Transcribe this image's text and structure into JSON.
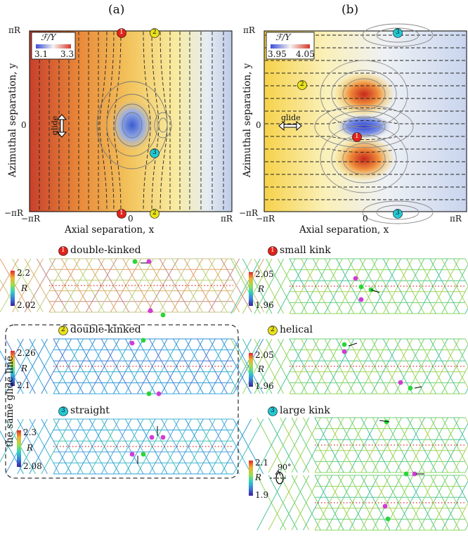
{
  "panels": [
    {
      "label": "(a)",
      "ylabel": "Azimuthal separation, y",
      "xlabel": "Axial separation, x",
      "x_ticks": [
        "−πR",
        "0",
        "πR"
      ],
      "y_ticks": [
        "πR",
        "0",
        "−πR"
      ],
      "legend_title": "ℱ/Y",
      "legend_min": "3.1",
      "legend_max": "3.3",
      "glide": "glide",
      "markers": [
        "1",
        "2",
        "3",
        "1",
        "2"
      ]
    },
    {
      "label": "(b)",
      "ylabel": "Azimuthal separation, y",
      "xlabel": "Axial separation, x",
      "x_ticks": [
        "−πR",
        "0",
        "πR"
      ],
      "y_ticks": [
        "πR",
        "0",
        "−πR"
      ],
      "legend_title": "ℱ/Y",
      "legend_min": "3.95",
      "legend_max": "4.05",
      "glide": "glide",
      "markers": [
        "3",
        "2",
        "1",
        "3"
      ]
    }
  ],
  "configs_a": [
    {
      "num": "1",
      "color": "#e2231a",
      "title": "double-kinked",
      "cb_max": "2.2",
      "cb_min": "2.02",
      "cb_mid": "R"
    },
    {
      "num": "2",
      "color": "#e9e21a",
      "title": "double-kinked",
      "cb_max": "2.26",
      "cb_min": "2.1",
      "cb_mid": "R"
    },
    {
      "num": "3",
      "color": "#22c9d4",
      "title": "straight",
      "cb_max": "2.3",
      "cb_min": "2.08",
      "cb_mid": "R"
    }
  ],
  "configs_b": [
    {
      "num": "1",
      "color": "#e2231a",
      "title": "small kink",
      "cb_max": "2.05",
      "cb_min": "1.96",
      "cb_mid": "R"
    },
    {
      "num": "2",
      "color": "#e9e21a",
      "title": "helical",
      "cb_max": "2.05",
      "cb_min": "1.96",
      "cb_mid": "R"
    },
    {
      "num": "3",
      "color": "#22c9d4",
      "title": "large kink",
      "cb_max": "2.1",
      "cb_min": "1.9",
      "cb_mid": "R"
    }
  ],
  "glide_box_label": "the same glide line",
  "rotation_label": "90°"
}
